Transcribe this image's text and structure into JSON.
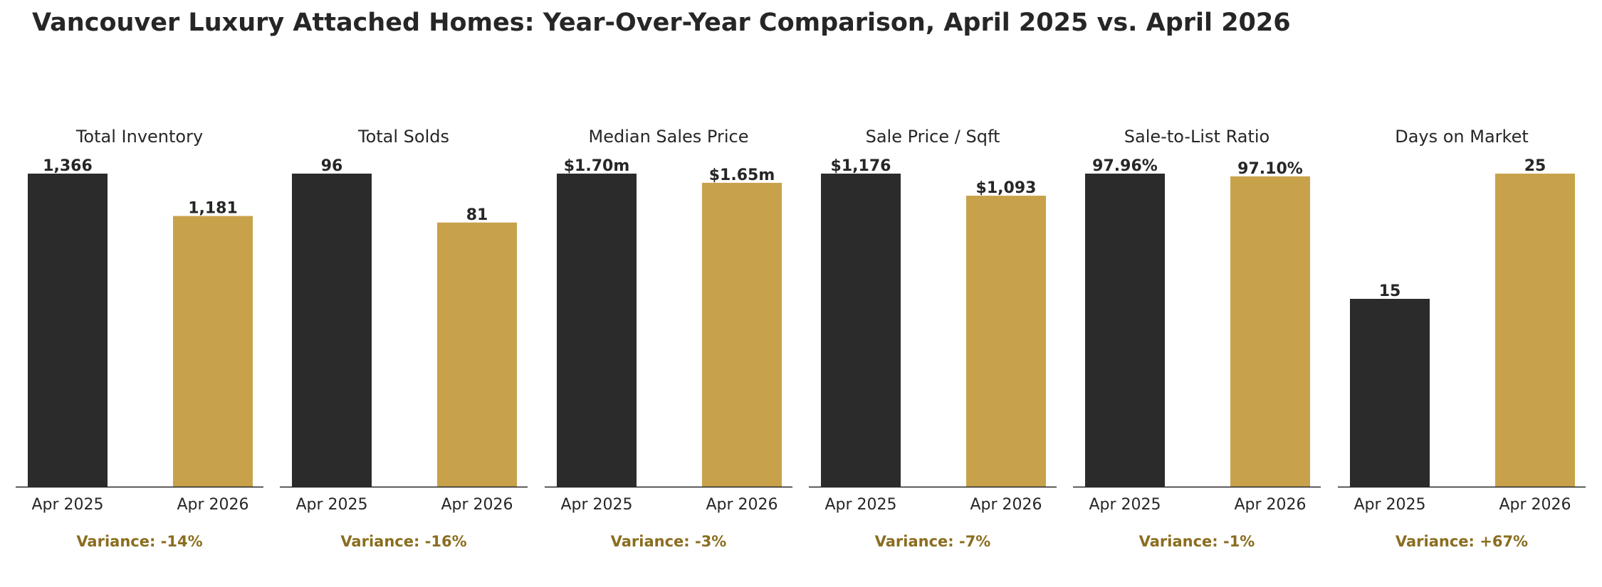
{
  "chart_data": {
    "type": "bar",
    "title": "Vancouver Luxury Attached Homes: Year-Over-Year Comparison, April 2025 vs. April 2026",
    "categories": [
      "Apr 2025",
      "Apr 2026"
    ],
    "colors": {
      "Apr 2025": "#2b2b2b",
      "Apr 2026": "#c8a24b",
      "variance": "#8a6d1f",
      "axis": "#262626"
    },
    "grid": false,
    "panels": [
      {
        "title": "Total Inventory",
        "values": [
          1366,
          1181
        ],
        "value_labels": [
          "1,366",
          "1,181"
        ],
        "variance": "Variance: -14%"
      },
      {
        "title": "Total Solds",
        "values": [
          96,
          81
        ],
        "value_labels": [
          "96",
          "81"
        ],
        "variance": "Variance: -16%"
      },
      {
        "title": "Median Sales Price",
        "values": [
          1.7,
          1.65
        ],
        "value_labels": [
          "$1.70m",
          "$1.65m"
        ],
        "variance": "Variance: -3%"
      },
      {
        "title": "Sale Price / Sqft",
        "values": [
          1176,
          1093
        ],
        "value_labels": [
          "$1,176",
          "$1,093"
        ],
        "variance": "Variance: -7%"
      },
      {
        "title": "Sale-to-List Ratio",
        "values": [
          97.96,
          97.1
        ],
        "value_labels": [
          "97.96%",
          "97.10%"
        ],
        "variance": "Variance: -1%"
      },
      {
        "title": "Days on Market",
        "values": [
          15,
          25
        ],
        "value_labels": [
          "15",
          "25"
        ],
        "variance": "Variance: +67%"
      }
    ]
  }
}
